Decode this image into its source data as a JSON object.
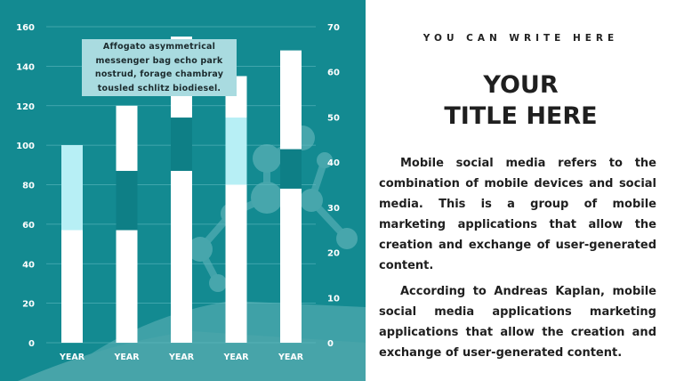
{
  "chart_data": {
    "type": "bar",
    "categories": [
      "YEAR",
      "YEAR",
      "YEAR",
      "YEAR",
      "YEAR"
    ],
    "series": [
      {
        "values": [
          100,
          120,
          155,
          135,
          148
        ]
      }
    ],
    "ranges": [
      {
        "low": 57,
        "high": 100
      },
      {
        "low": 57,
        "high": 87
      },
      {
        "low": 87,
        "high": 114
      },
      {
        "low": 80,
        "high": 114
      },
      {
        "low": 78,
        "high": 98
      }
    ],
    "range_colors": [
      "#b7eff5",
      "#0e7f86",
      "#0e7f86",
      "#b7eff5",
      "#0e7f86"
    ],
    "ylim": [
      0,
      160
    ],
    "yticks": [
      "0",
      "20",
      "40",
      "60",
      "80",
      "100",
      "120",
      "140",
      "160"
    ],
    "y2lim": [
      0,
      70
    ],
    "y2ticks": [
      "0",
      "10",
      "20",
      "30",
      "40",
      "50",
      "60",
      "70"
    ],
    "grid": true,
    "bar_color": "#ffffff",
    "callout": "Affogato asymmetrical messenger bag echo park nostrud, forage chambray tousled schlitz biodiesel."
  },
  "right": {
    "kicker": "YOU CAN WRITE HERE",
    "title_line1": "YOUR",
    "title_line2": "TITLE HERE",
    "paragraph1": "Mobile social media refers to the combination of mobile devices and social media. This is a group of mobile marketing applications that allow the creation and exchange of user-generated content.",
    "paragraph2": "According to Andreas Kaplan, mobile social media applications marketing applications that allow the creation and exchange of user-generated content."
  },
  "colors": {
    "panel_bg": "#138a91",
    "text_dark": "#1f1f1f"
  }
}
